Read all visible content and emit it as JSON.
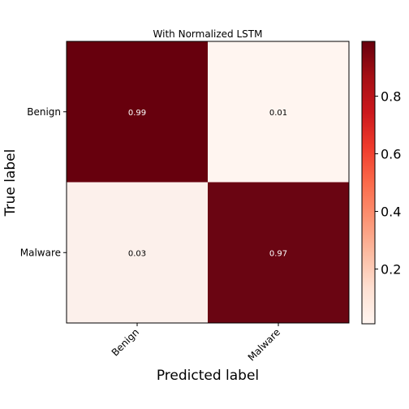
{
  "chart_data": {
    "type": "heatmap",
    "title": "With Normalized LSTM",
    "xlabel": "Predicted label",
    "ylabel": "True label",
    "x_categories": [
      "Benign",
      "Malware"
    ],
    "y_categories": [
      "Benign",
      "Malware"
    ],
    "values": [
      [
        0.99,
        0.01
      ],
      [
        0.03,
        0.97
      ]
    ],
    "cell_labels": [
      [
        "0.99",
        "0.01"
      ],
      [
        "0.03",
        "0.97"
      ]
    ],
    "colormap": "Reds",
    "colorbar": {
      "range": [
        0.01,
        0.99
      ],
      "ticks": [
        0.2,
        0.4,
        0.6,
        0.8
      ],
      "tick_labels": [
        "0.2",
        "0.4",
        "0.6",
        "0.8"
      ]
    },
    "colors": {
      "low": "#fff5f0",
      "high": "#67000d"
    }
  }
}
